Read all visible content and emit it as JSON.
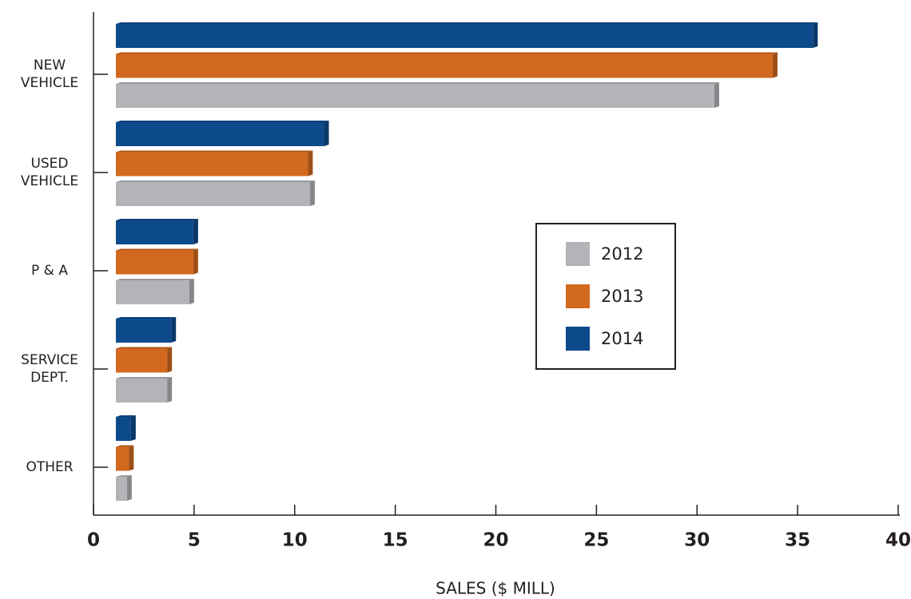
{
  "chart_data": {
    "type": "hbar",
    "xlabel": "SALES ($ MILL)",
    "categories": [
      "NEW\nVEHICLE",
      "USED\nVEHICLE",
      "P & A",
      "SERVICE\nDEPT.",
      "OTHER"
    ],
    "series": [
      {
        "name": "2012",
        "color": "#b3b4b8",
        "values": [
          31.1,
          11.0,
          5.0,
          3.9,
          1.9
        ]
      },
      {
        "name": "2013",
        "color": "#d2691e",
        "values": [
          34.0,
          10.9,
          5.2,
          3.9,
          2.0
        ]
      },
      {
        "name": "2014",
        "color": "#0d4a8c",
        "values": [
          36.0,
          11.7,
          5.2,
          4.1,
          2.1
        ]
      }
    ],
    "xlim": [
      0,
      40
    ],
    "xticks": [
      0,
      5,
      10,
      15,
      20,
      25,
      30,
      35,
      40
    ],
    "legend": "center-right"
  }
}
